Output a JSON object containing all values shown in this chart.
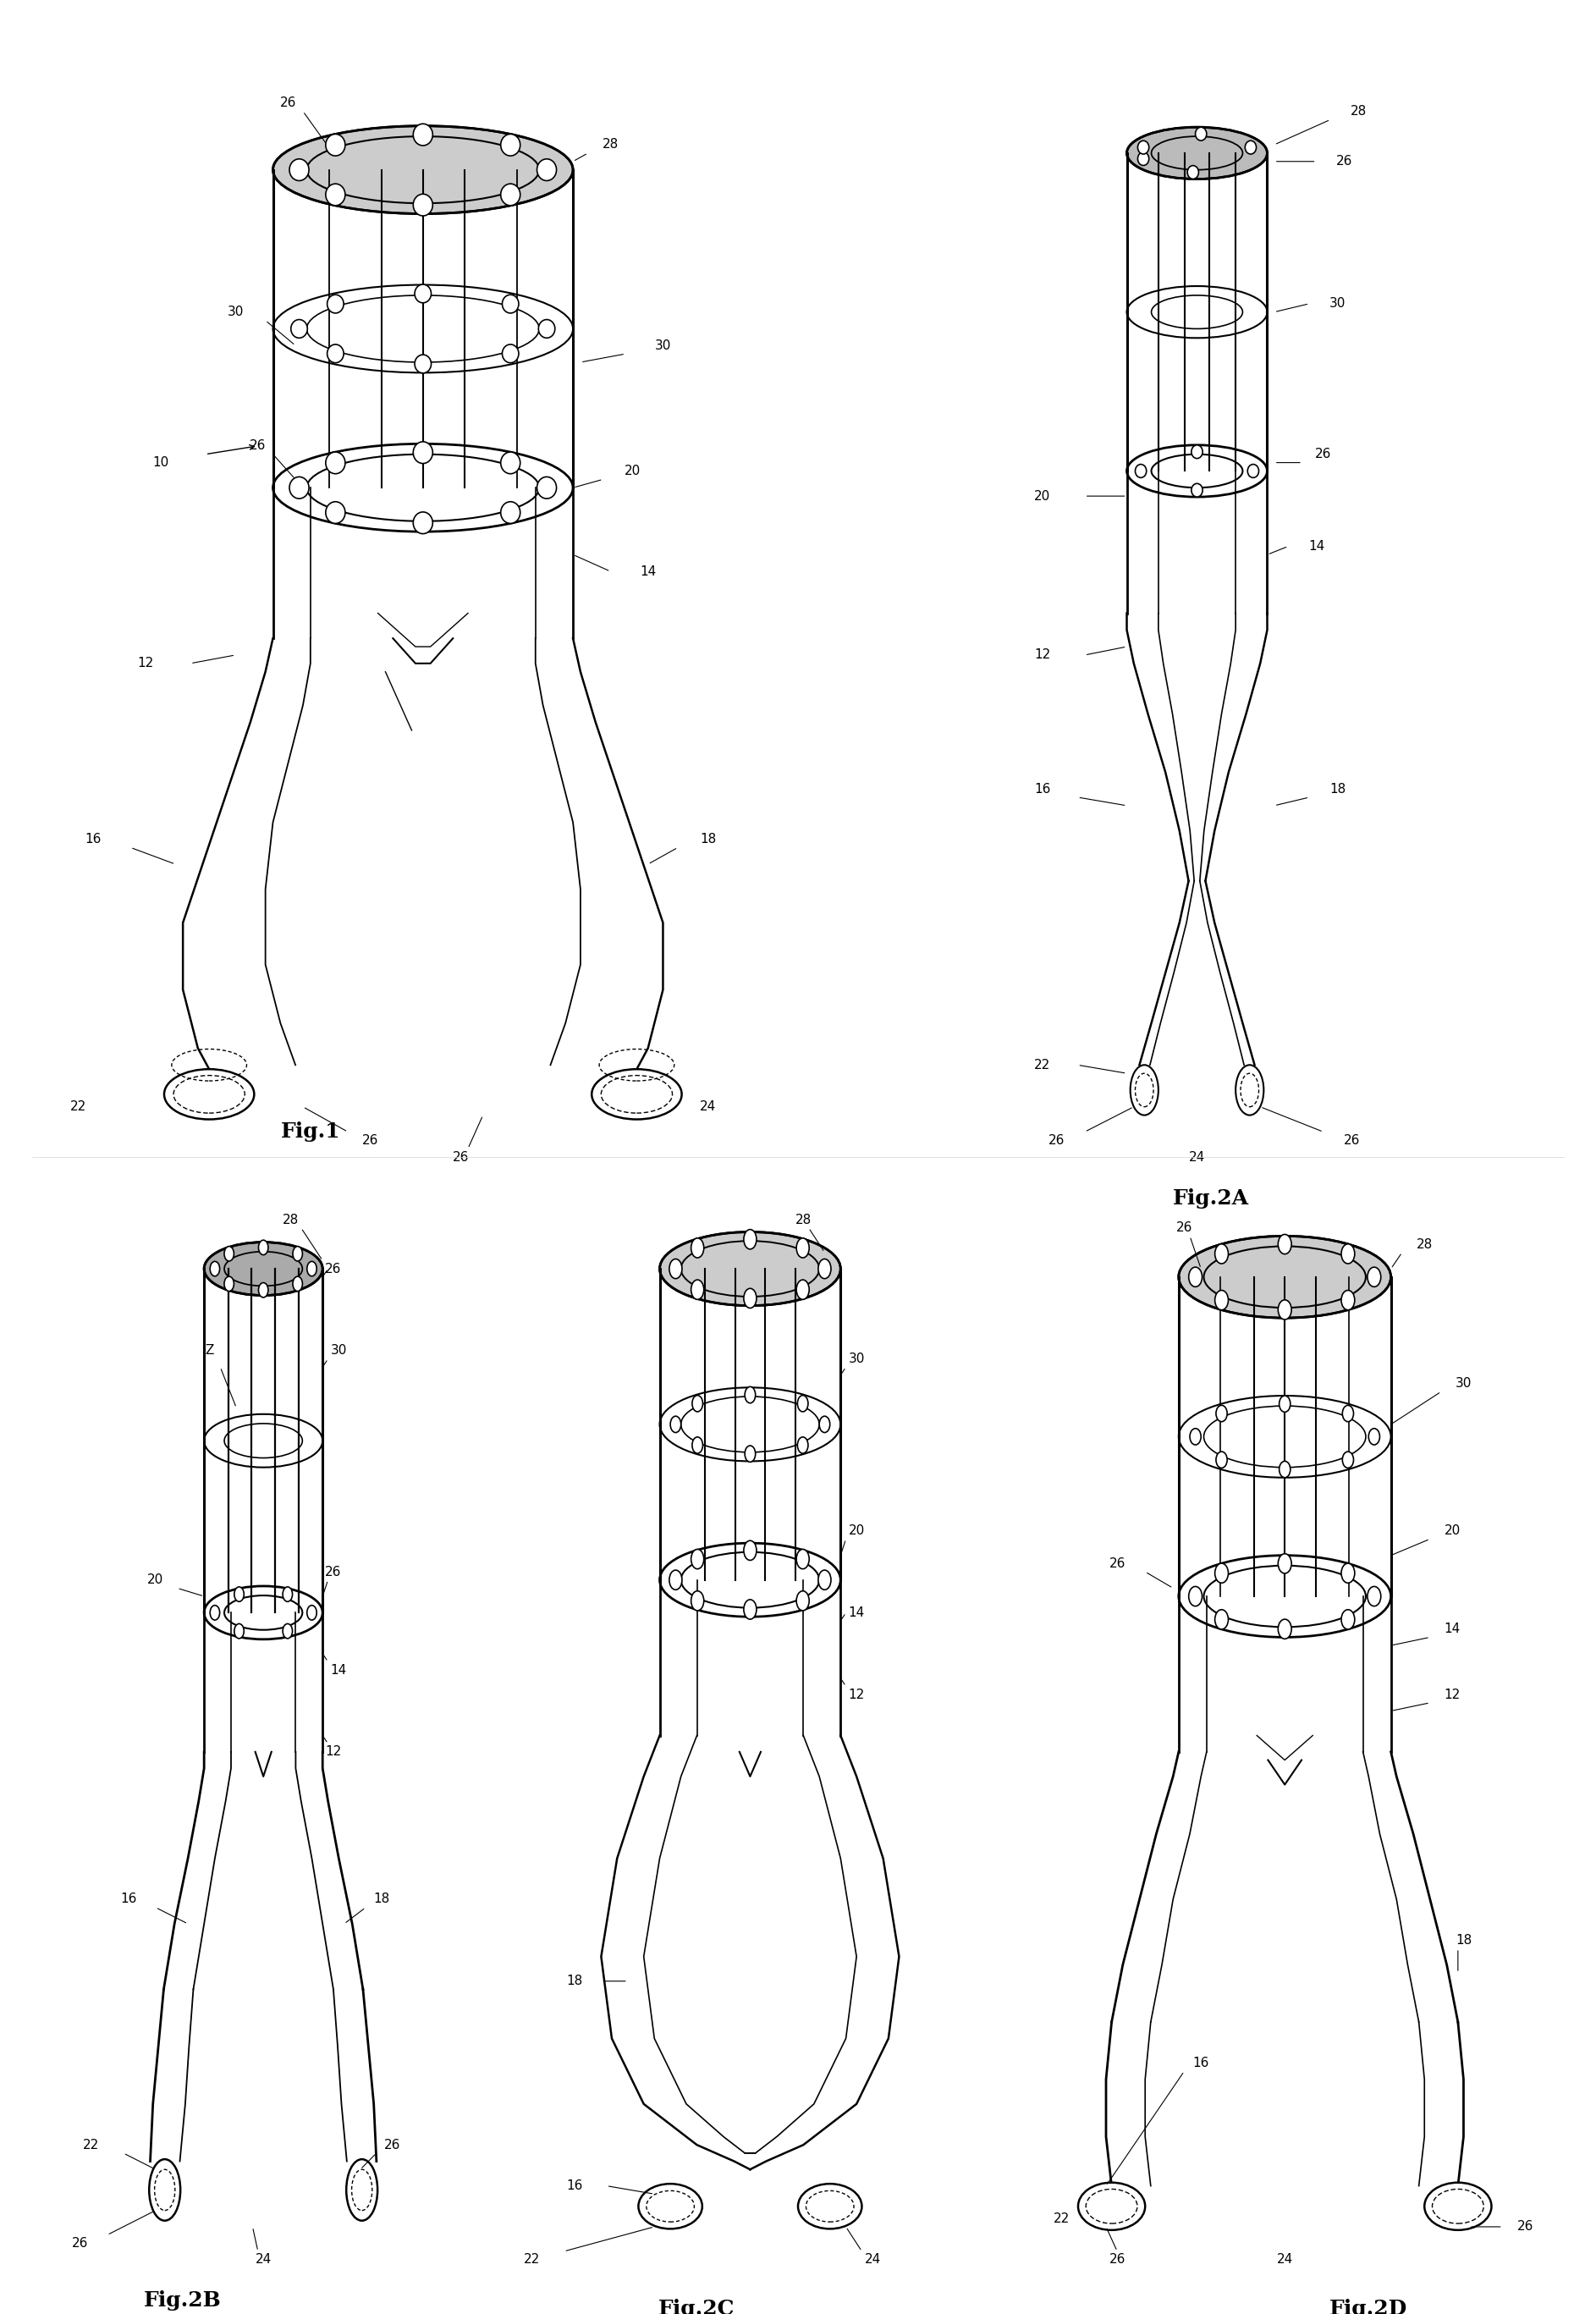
{
  "bg_color": "#ffffff",
  "line_color": "#000000",
  "label_fontsize": 11,
  "fig_label_fontsize": 18,
  "figures": [
    "Fig.1",
    "Fig.2A",
    "Fig.2B",
    "Fig.2C",
    "Fig.2D"
  ]
}
